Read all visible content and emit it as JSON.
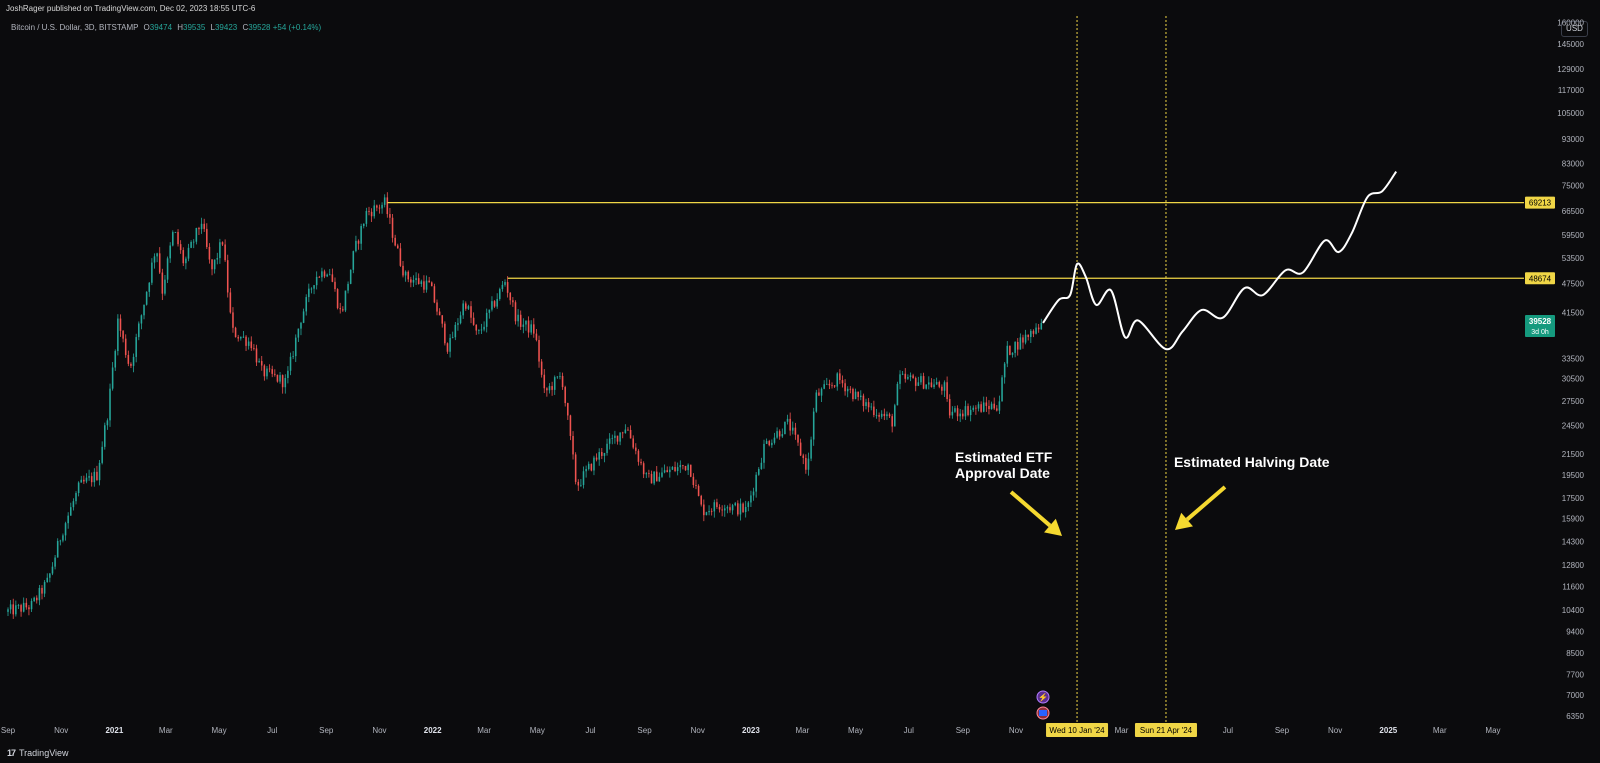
{
  "header": {
    "published": "JoshRager published on TradingView.com, Dec 02, 2023 18:55 UTC-6"
  },
  "legend": {
    "symbol": "Bitcoin / U.S. Dollar, 3D, BITSTAMP",
    "o_label": "O",
    "o": "39474",
    "h_label": "H",
    "h": "39535",
    "l_label": "L",
    "l": "39423",
    "c_label": "C",
    "c": "39528",
    "change": "+54 (+0.14%)"
  },
  "currency": "USD",
  "footer": {
    "brand": "TradingView",
    "logo": "17"
  },
  "colors": {
    "background": "#0b0b0d",
    "up": "#26a69a",
    "down": "#ef5350",
    "level": "#f0d646",
    "projection": "#ffffff",
    "arrow": "#f5d930",
    "last_price_bg": "#159a7e"
  },
  "chart_data": {
    "type": "line",
    "title": "Bitcoin / U.S. Dollar, 3D, BITSTAMP",
    "y_scale": "log",
    "ylim": [
      6000,
      165000
    ],
    "xlim": [
      "2020-09-01",
      "2025-06-01"
    ],
    "y_ticks": [
      6350,
      7000,
      7700,
      8500,
      9400,
      10400,
      11600,
      12800,
      14300,
      15900,
      17500,
      19500,
      21500,
      24500,
      27500,
      30500,
      33500,
      41500,
      47500,
      53500,
      59500,
      66500,
      75000,
      83000,
      93000,
      105000,
      117000,
      129000,
      145000,
      160000
    ],
    "x_ticks": [
      {
        "date": "2020-09-01",
        "label": "Sep"
      },
      {
        "date": "2020-11-01",
        "label": "Nov"
      },
      {
        "date": "2021-01-01",
        "label": "2021"
      },
      {
        "date": "2021-03-01",
        "label": "Mar"
      },
      {
        "date": "2021-05-01",
        "label": "May"
      },
      {
        "date": "2021-07-01",
        "label": "Jul"
      },
      {
        "date": "2021-09-01",
        "label": "Sep"
      },
      {
        "date": "2021-11-01",
        "label": "Nov"
      },
      {
        "date": "2022-01-01",
        "label": "2022"
      },
      {
        "date": "2022-03-01",
        "label": "Mar"
      },
      {
        "date": "2022-05-01",
        "label": "May"
      },
      {
        "date": "2022-07-01",
        "label": "Jul"
      },
      {
        "date": "2022-09-01",
        "label": "Sep"
      },
      {
        "date": "2022-11-01",
        "label": "Nov"
      },
      {
        "date": "2023-01-01",
        "label": "2023"
      },
      {
        "date": "2023-03-01",
        "label": "Mar"
      },
      {
        "date": "2023-05-01",
        "label": "May"
      },
      {
        "date": "2023-07-01",
        "label": "Jul"
      },
      {
        "date": "2023-09-01",
        "label": "Sep"
      },
      {
        "date": "2023-11-01",
        "label": "Nov"
      },
      {
        "date": "2024-03-01",
        "label": "Mar"
      },
      {
        "date": "2024-07-01",
        "label": "Jul"
      },
      {
        "date": "2024-09-01",
        "label": "Sep"
      },
      {
        "date": "2024-11-01",
        "label": "Nov"
      },
      {
        "date": "2025-01-01",
        "label": "2025"
      },
      {
        "date": "2025-03-01",
        "label": "Mar"
      },
      {
        "date": "2025-05-01",
        "label": "May"
      }
    ],
    "price_path": [
      [
        "2020-09-01",
        10300
      ],
      [
        "2020-10-01",
        10600
      ],
      [
        "2020-10-20",
        11900
      ],
      [
        "2020-11-05",
        15000
      ],
      [
        "2020-11-25",
        18500
      ],
      [
        "2020-12-15",
        19500
      ],
      [
        "2020-12-28",
        26500
      ],
      [
        "2021-01-08",
        40000
      ],
      [
        "2021-01-22",
        32000
      ],
      [
        "2021-02-10",
        46000
      ],
      [
        "2021-02-21",
        57000
      ],
      [
        "2021-02-28",
        46000
      ],
      [
        "2021-03-13",
        61000
      ],
      [
        "2021-03-25",
        52000
      ],
      [
        "2021-04-14",
        63500
      ],
      [
        "2021-04-25",
        50000
      ],
      [
        "2021-05-08",
        58000
      ],
      [
        "2021-05-19",
        38000
      ],
      [
        "2021-06-10",
        36000
      ],
      [
        "2021-06-22",
        31500
      ],
      [
        "2021-07-20",
        30000
      ],
      [
        "2021-08-05",
        40000
      ],
      [
        "2021-08-22",
        49000
      ],
      [
        "2021-09-07",
        51000
      ],
      [
        "2021-09-21",
        41000
      ],
      [
        "2021-10-06",
        55000
      ],
      [
        "2021-10-20",
        66000
      ],
      [
        "2021-11-10",
        69000
      ],
      [
        "2021-11-26",
        54000
      ],
      [
        "2021-12-04",
        49000
      ],
      [
        "2022-01-01",
        47000
      ],
      [
        "2022-01-22",
        35000
      ],
      [
        "2022-02-10",
        44000
      ],
      [
        "2022-02-24",
        37000
      ],
      [
        "2022-03-28",
        48000
      ],
      [
        "2022-04-11",
        40000
      ],
      [
        "2022-05-01",
        38000
      ],
      [
        "2022-05-12",
        28500
      ],
      [
        "2022-06-01",
        31000
      ],
      [
        "2022-06-18",
        18500
      ],
      [
        "2022-07-10",
        21000
      ],
      [
        "2022-08-14",
        24500
      ],
      [
        "2022-09-07",
        19000
      ],
      [
        "2022-09-20",
        19500
      ],
      [
        "2022-10-25",
        20500
      ],
      [
        "2022-11-09",
        16500
      ],
      [
        "2022-12-01",
        17000
      ],
      [
        "2022-12-30",
        16500
      ],
      [
        "2023-01-20",
        22500
      ],
      [
        "2023-02-16",
        24800
      ],
      [
        "2023-03-10",
        20000
      ],
      [
        "2023-03-19",
        28000
      ],
      [
        "2023-04-14",
        30500
      ],
      [
        "2023-05-10",
        27500
      ],
      [
        "2023-06-15",
        25000
      ],
      [
        "2023-06-23",
        30500
      ],
      [
        "2023-07-15",
        30200
      ],
      [
        "2023-08-15",
        29200
      ],
      [
        "2023-08-18",
        26000
      ],
      [
        "2023-09-15",
        26500
      ],
      [
        "2023-10-15",
        27000
      ],
      [
        "2023-10-24",
        34500
      ],
      [
        "2023-11-15",
        37000
      ],
      [
        "2023-12-02",
        39528
      ]
    ],
    "projection": [
      [
        "2023-12-02",
        39528
      ],
      [
        "2023-12-20",
        44000
      ],
      [
        "2024-01-02",
        45000
      ],
      [
        "2024-01-10",
        52000
      ],
      [
        "2024-01-20",
        49000
      ],
      [
        "2024-02-01",
        43000
      ],
      [
        "2024-02-18",
        46000
      ],
      [
        "2024-03-05",
        37000
      ],
      [
        "2024-03-20",
        40000
      ],
      [
        "2024-04-21",
        35000
      ],
      [
        "2024-05-10",
        38000
      ],
      [
        "2024-06-01",
        42000
      ],
      [
        "2024-06-25",
        40500
      ],
      [
        "2024-07-20",
        46500
      ],
      [
        "2024-08-10",
        45000
      ],
      [
        "2024-09-05",
        50500
      ],
      [
        "2024-09-25",
        50000
      ],
      [
        "2024-10-20",
        58000
      ],
      [
        "2024-11-05",
        55000
      ],
      [
        "2024-11-20",
        60000
      ],
      [
        "2024-12-08",
        71000
      ],
      [
        "2024-12-25",
        73000
      ],
      [
        "2025-01-10",
        80000
      ]
    ],
    "levels": [
      {
        "value": 69213,
        "label": "69213",
        "from": "2021-11-10"
      },
      {
        "value": 48674,
        "label": "48674",
        "from": "2022-03-28"
      }
    ],
    "last_price": {
      "value": 39528,
      "label": "39528",
      "countdown": "3d 0h"
    },
    "events": [
      {
        "date": "2024-01-10",
        "label": "Wed 10 Jan '24",
        "annotation_lines": [
          "Estimated ETF",
          "Approval Date"
        ]
      },
      {
        "date": "2024-04-21",
        "label": "Sun 21 Apr '24",
        "annotation_lines": [
          "Estimated Halving Date"
        ]
      }
    ],
    "grid": false,
    "legend_position": "top-left"
  }
}
